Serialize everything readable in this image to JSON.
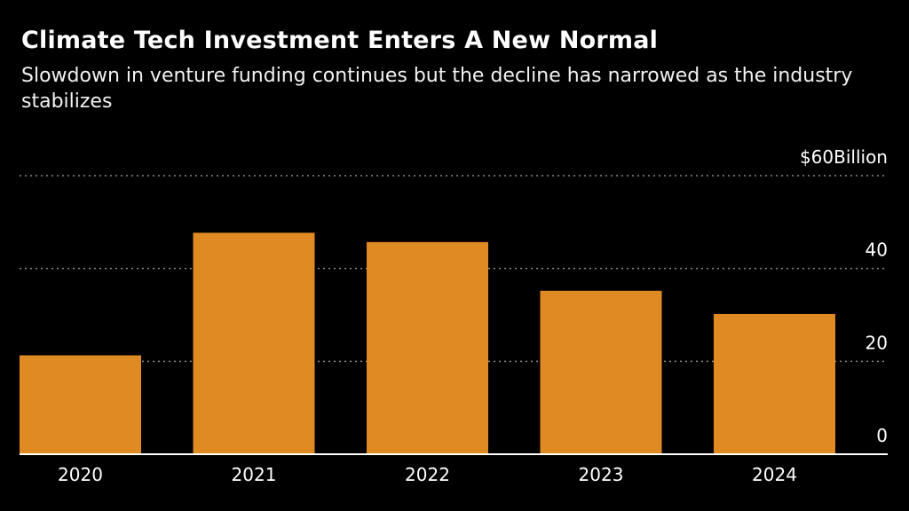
{
  "title": "Climate Tech Investment Enters A New Normal",
  "subtitle": "Slowdown in venture funding continues but the decline has narrowed as the industry stabilizes",
  "colors": {
    "background": "#000000",
    "bar": "#e08a23",
    "text": "#ffffff",
    "gridline": "#888888",
    "axis": "#ffffff"
  },
  "chart_data": {
    "type": "bar",
    "title": "Climate Tech Investment Enters A New Normal",
    "subtitle": "Slowdown in venture funding continues but the decline has narrowed as the industry stabilizes",
    "categories": [
      "2020",
      "2021",
      "2022",
      "2023",
      "2024"
    ],
    "values": [
      21.3,
      47.7,
      45.7,
      35.2,
      30.2
    ],
    "unit": "$ Billion",
    "ylim": [
      0,
      60
    ],
    "yticks": [
      0,
      20,
      40,
      60
    ],
    "ytick_labels": [
      "0",
      "20",
      "40",
      "$60Billion"
    ],
    "grid": true,
    "grid_style": "dotted",
    "y_axis_position": "right",
    "legend": false
  }
}
